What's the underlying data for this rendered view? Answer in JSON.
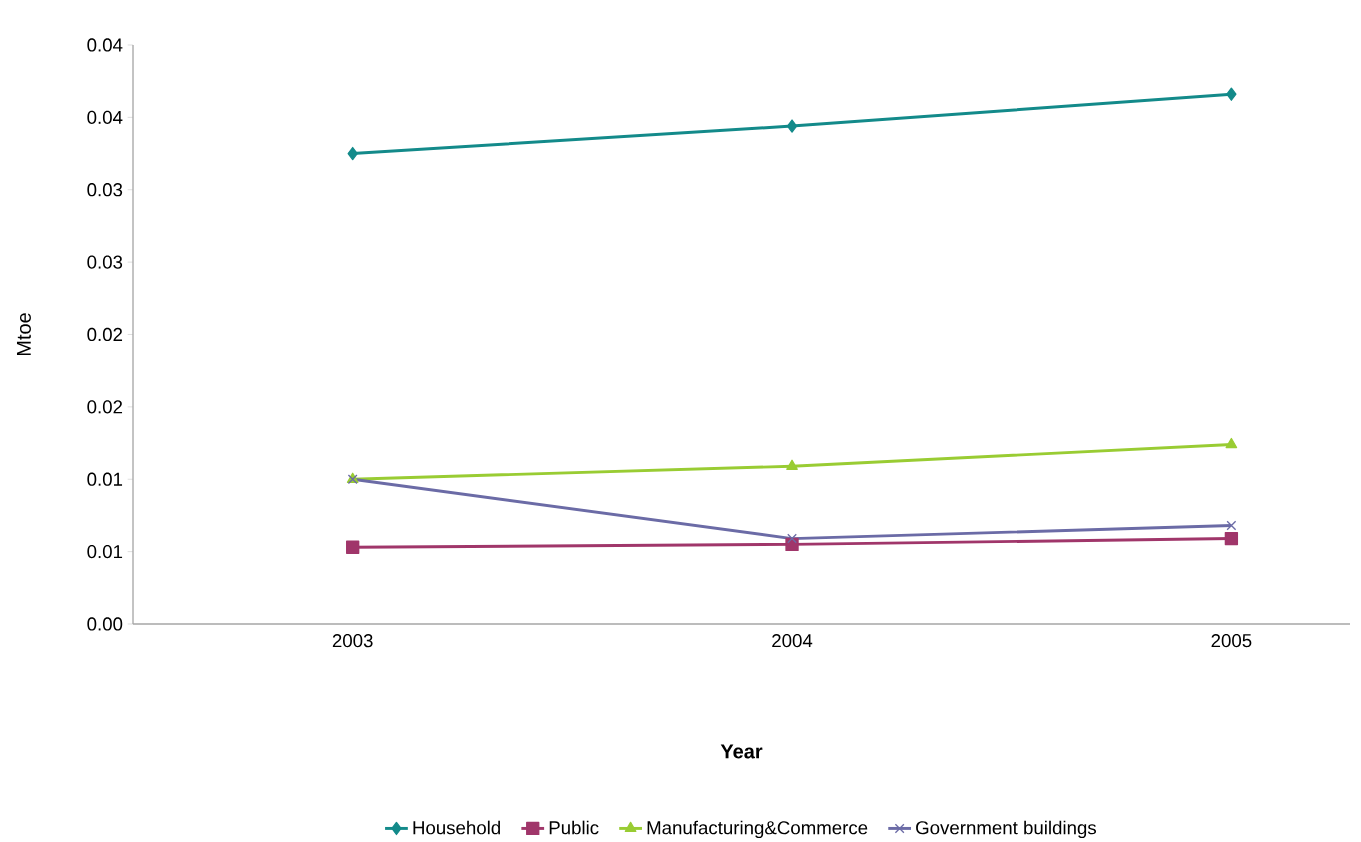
{
  "chart_data": {
    "type": "line",
    "xlabel": "Year",
    "ylabel": "Mtoe",
    "categories": [
      "2003",
      "2004",
      "2005"
    ],
    "series": [
      {
        "name": "Household",
        "color": "#138a8a",
        "marker": "diamond",
        "values": [
          0.0325,
          0.0344,
          0.0366
        ]
      },
      {
        "name": "Public",
        "color": "#a0366a",
        "marker": "square",
        "values": [
          0.0053,
          0.0055,
          0.0059
        ]
      },
      {
        "name": "Manufacturing&Commerce",
        "color": "#99cc33",
        "marker": "triangle",
        "values": [
          0.01,
          0.0109,
          0.0124
        ]
      },
      {
        "name": "Government buildings",
        "color": "#6b6ba6",
        "marker": "cross",
        "values": [
          0.01,
          0.0059,
          0.0068
        ]
      }
    ],
    "ylim": [
      0,
      0.04
    ],
    "yticks": [
      {
        "value": 0,
        "label": "0.00"
      },
      {
        "value": 0.005,
        "label": "0.01"
      },
      {
        "value": 0.01,
        "label": "0.01"
      },
      {
        "value": 0.015,
        "label": "0.02"
      },
      {
        "value": 0.02,
        "label": "0.02"
      },
      {
        "value": 0.025,
        "label": "0.03"
      },
      {
        "value": 0.03,
        "label": "0.03"
      },
      {
        "value": 0.035,
        "label": "0.04"
      },
      {
        "value": 0.04,
        "label": "0.04"
      }
    ],
    "grid": false,
    "legend": "bottom",
    "line_style": "solid"
  }
}
